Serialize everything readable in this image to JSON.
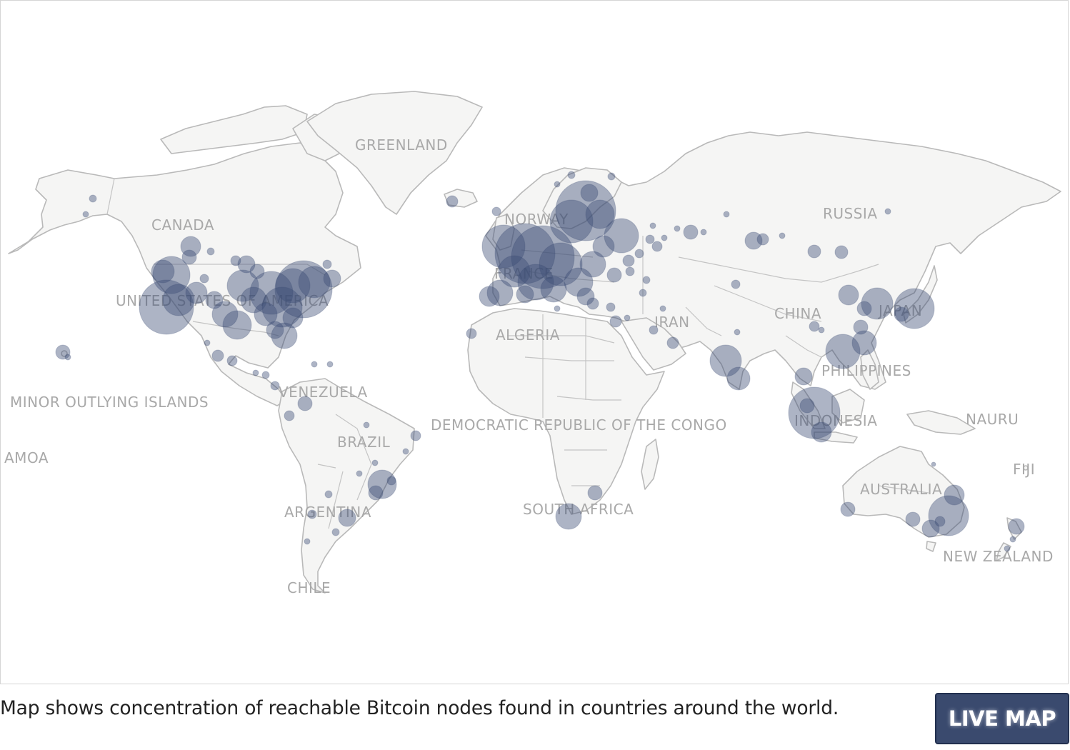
{
  "map": {
    "labels": {
      "greenland": "GREENLAND",
      "canada": "CANADA",
      "usa": "UNITED STATES OF AMERICA",
      "minor_islands": "MINOR OUTLYING ISLANDS",
      "samoa": "AMOA",
      "venezuela": "VENEZUELA",
      "brazil": "BRAZIL",
      "argentina": "ARGENTINA",
      "chile": "CHILE",
      "norway": "NORWAY",
      "france": "FRANCE",
      "algeria": "ALGERIA",
      "drc": "DEMOCRATIC REPUBLIC OF THE CONGO",
      "south_africa": "SOUTH AFRICA",
      "iran": "IRAN",
      "russia": "RUSSIA",
      "china": "CHINA",
      "japan": "JAPAN",
      "philippines": "PHILIPPINES",
      "indonesia": "INDONESIA",
      "nauru": "NAURU",
      "fiji": "FIJI",
      "australia": "AUSTRALIA",
      "new_zealand": "NEW ZEALAND"
    },
    "colors": {
      "land": "#f5f5f4",
      "border": "#b9b9b9",
      "node": "#3b4d75",
      "label": "#a9a9a9"
    }
  },
  "caption": "Map shows concentration of reachable Bitcoin nodes found in countries around the world.",
  "live_map_button": "LIVE MAP"
}
